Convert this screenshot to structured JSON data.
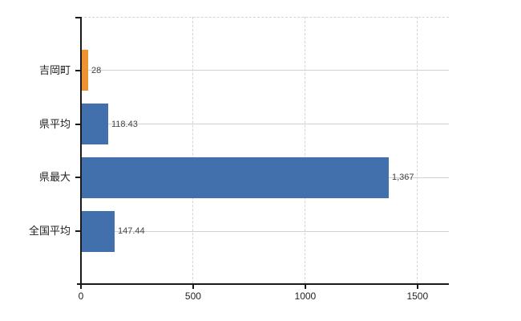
{
  "chart_data": {
    "type": "bar",
    "orientation": "horizontal",
    "title": "",
    "xlabel": "",
    "ylabel": "",
    "categories": [
      "吉岡町",
      "県平均",
      "県最大",
      "全国平均"
    ],
    "values": [
      28,
      118.43,
      1367,
      147.44
    ],
    "value_labels": [
      "28",
      "118.43",
      "1,367",
      "147.44"
    ],
    "bar_colors": [
      "#ed9332",
      "#4270ad",
      "#4270ad",
      "#4270ad"
    ],
    "x_axis": {
      "min": 0,
      "max": 1640,
      "ticks": [
        0,
        500,
        1000,
        1500
      ],
      "tick_labels": [
        "0",
        "500",
        "1000",
        "1500"
      ]
    },
    "legend": "none",
    "grid": {
      "vertical_dashed": true,
      "horizontal_solid": true,
      "top_border_dashed": true
    },
    "colors": {
      "axis": "#1a1a1a",
      "grid_vertical": "#d4d4d4",
      "grid_horizontal": "#ccd4cc",
      "value_label": "#444444",
      "category_label": "#222222",
      "tick_label": "#222222",
      "background": "#ffffff"
    }
  }
}
